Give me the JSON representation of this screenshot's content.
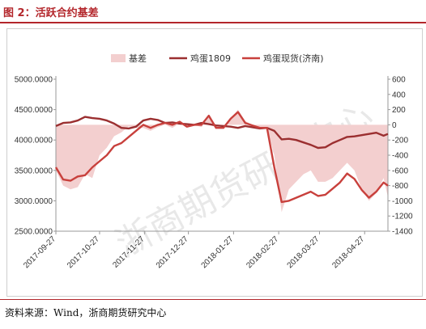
{
  "header": {
    "title": "图 2：活跃合约基差"
  },
  "footer": {
    "source": "资料来源：Wind，浙商期货研究中心"
  },
  "watermark": "浙商期货研究中心",
  "colors": {
    "accent": "#b3262b",
    "basis_fill": "#f3cfcf",
    "futures": "#9b2f30",
    "spot": "#c8403c"
  },
  "chart_data": {
    "type": "line",
    "title": "",
    "legend": {
      "position": "top",
      "items": [
        "基差",
        "鸡蛋1809",
        "鸡蛋现货(济南)"
      ]
    },
    "x_tick_labels": [
      "2017-09-27",
      "2017-10-27",
      "2017-11-27",
      "2017-12-27",
      "2018-01-27",
      "2018-02-27",
      "2018-03-27",
      "2018-04-27"
    ],
    "y_left": {
      "range": [
        2500,
        5000
      ],
      "ticks": [
        "5000.0000",
        "4500.0000",
        "4000.0000",
        "3500.0000",
        "3000.0000",
        "2500.0000"
      ]
    },
    "y_right": {
      "range": [
        -1400,
        600
      ],
      "ticks": [
        "600",
        "400",
        "200",
        "0",
        "-200",
        "-400",
        "-600",
        "-800",
        "-1000",
        "-1200",
        "-1400"
      ]
    },
    "grid": false,
    "x_dates": [
      "2017-09-27",
      "2017-10-02",
      "2017-10-07",
      "2017-10-12",
      "2017-10-17",
      "2017-10-22",
      "2017-10-27",
      "2017-11-01",
      "2017-11-06",
      "2017-11-11",
      "2017-11-16",
      "2017-11-21",
      "2017-11-26",
      "2017-12-01",
      "2017-12-06",
      "2017-12-11",
      "2017-12-16",
      "2017-12-21",
      "2017-12-26",
      "2017-12-31",
      "2018-01-05",
      "2018-01-10",
      "2018-01-15",
      "2018-01-20",
      "2018-01-25",
      "2018-01-30",
      "2018-02-04",
      "2018-02-09",
      "2018-02-14",
      "2018-02-19",
      "2018-02-24",
      "2018-03-01",
      "2018-03-06",
      "2018-03-11",
      "2018-03-16",
      "2018-03-21",
      "2018-03-26",
      "2018-03-31",
      "2018-04-05",
      "2018-04-10",
      "2018-04-15",
      "2018-04-20",
      "2018-04-25",
      "2018-04-30",
      "2018-05-05",
      "2018-05-10",
      "2018-05-13"
    ],
    "series": [
      {
        "name": "基差",
        "axis": "right",
        "kind": "area",
        "values": [
          -600,
          -800,
          -850,
          -820,
          -650,
          -700,
          -400,
          -300,
          -150,
          -100,
          -20,
          -40,
          -40,
          -80,
          -30,
          0,
          -40,
          20,
          -30,
          0,
          -30,
          100,
          -30,
          -20,
          80,
          200,
          50,
          0,
          -30,
          -50,
          -400,
          -1150,
          -850,
          -750,
          -650,
          -600,
          -750,
          -750,
          -700,
          -600,
          -500,
          -600,
          -850,
          -1000,
          -900,
          -700,
          -950
        ]
      },
      {
        "name": "鸡蛋1809",
        "axis": "left",
        "kind": "line",
        "values": [
          4230,
          4280,
          4290,
          4320,
          4380,
          4360,
          4350,
          4320,
          4270,
          4200,
          4190,
          4220,
          4320,
          4350,
          4330,
          4280,
          4290,
          4270,
          4260,
          4250,
          4280,
          4260,
          4240,
          4230,
          4220,
          4200,
          4230,
          4210,
          4190,
          4200,
          4150,
          4010,
          4020,
          4000,
          3960,
          3920,
          3870,
          3880,
          3950,
          4000,
          4050,
          4060,
          4080,
          4100,
          4120,
          4070,
          4100
        ]
      },
      {
        "name": "鸡蛋现货(济南)",
        "axis": "left",
        "kind": "line",
        "values": [
          3550,
          3350,
          3330,
          3400,
          3420,
          3550,
          3650,
          3750,
          3900,
          3950,
          4050,
          4150,
          4250,
          4200,
          4250,
          4280,
          4250,
          4300,
          4220,
          4250,
          4250,
          4400,
          4200,
          4200,
          4350,
          4460,
          4280,
          4240,
          4200,
          4200,
          3550,
          2980,
          3000,
          3050,
          3100,
          3150,
          3080,
          3100,
          3200,
          3300,
          3450,
          3360,
          3180,
          3050,
          3150,
          3300,
          3250
        ]
      }
    ]
  }
}
